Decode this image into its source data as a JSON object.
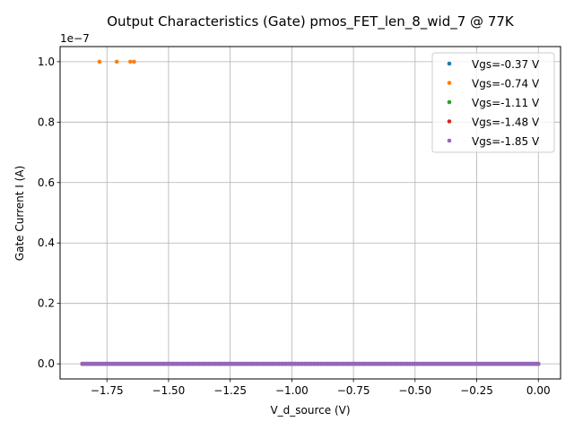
{
  "chart_data": {
    "type": "scatter",
    "title": "Output Characteristics (Gate) pmos_FET_len_8_wid_7 @ 77K",
    "xlabel": "V_d_source (V)",
    "ylabel": "Gate Current I (A)",
    "y_offset_label": "1e−7",
    "y_scale": 1e-07,
    "xlim": [
      -1.94,
      0.09
    ],
    "ylim": [
      -5e-09,
      1.05e-07
    ],
    "x_ticks": [
      -1.75,
      -1.5,
      -1.25,
      -1.0,
      -0.75,
      -0.5,
      -0.25,
      0.0
    ],
    "x_tick_labels": [
      "−1.75",
      "−1.50",
      "−1.25",
      "−1.00",
      "−0.75",
      "−0.50",
      "−0.25",
      "0.00"
    ],
    "y_ticks": [
      0,
      2e-08,
      4e-08,
      6e-08,
      8e-08,
      1e-07
    ],
    "y_tick_labels": [
      "0.0",
      "0.2",
      "0.4",
      "0.6",
      "0.8",
      "1.0"
    ],
    "grid": true,
    "legend_position": "top-right",
    "x_range": [
      -1.85,
      0.0
    ],
    "n_points": 200,
    "series": [
      {
        "name": "Vgs=-0.37 V",
        "color": "#1f77b4",
        "outliers": []
      },
      {
        "name": "Vgs=-0.74 V",
        "color": "#ff7f0e",
        "outliers": [
          {
            "x": -1.78,
            "y": 1e-07
          },
          {
            "x": -1.71,
            "y": 1e-07
          },
          {
            "x": -1.655,
            "y": 1e-07
          },
          {
            "x": -1.64,
            "y": 1e-07
          }
        ]
      },
      {
        "name": "Vgs=-1.11 V",
        "color": "#2ca02c",
        "outliers": []
      },
      {
        "name": "Vgs=-1.48 V",
        "color": "#d62728",
        "outliers": []
      },
      {
        "name": "Vgs=-1.85 V",
        "color": "#9467bd",
        "outliers": []
      }
    ]
  }
}
